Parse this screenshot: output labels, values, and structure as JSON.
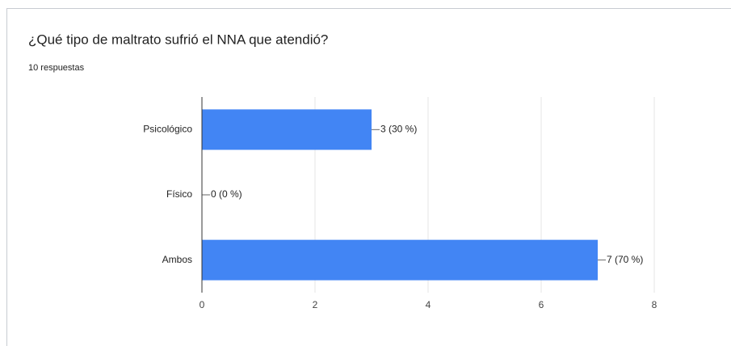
{
  "chart_data": {
    "type": "bar",
    "orientation": "horizontal",
    "title": "¿Qué tipo de maltrato sufrió el NNA que atendió?",
    "subtitle": "10 respuestas",
    "categories": [
      "Psicológico",
      "Físico",
      "Ambos"
    ],
    "values": [
      3,
      0,
      7
    ],
    "value_labels": [
      "3 (30 %)",
      "0 (0 %)",
      "7 (70 %)"
    ],
    "color": "#4285f4",
    "xlim": [
      0,
      8
    ],
    "xticks": [
      0,
      2,
      4,
      6,
      8
    ],
    "grid": true
  }
}
